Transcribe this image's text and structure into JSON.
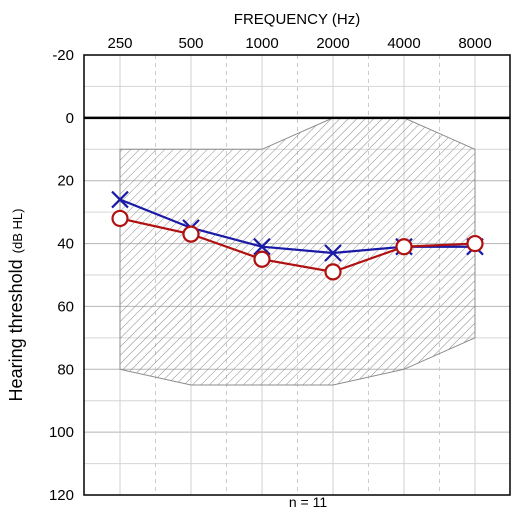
{
  "chart_data": {
    "type": "line",
    "title": "",
    "xlabel": "FREQUENCY (Hz)",
    "ylabel": "Hearing threshold",
    "ylabel_unit": "(dB HL)",
    "x_scale": "log2",
    "categories": [
      "250",
      "500",
      "1000",
      "2000",
      "4000",
      "8000"
    ],
    "x": [
      250,
      500,
      1000,
      2000,
      4000,
      8000
    ],
    "ylim": [
      120,
      -20
    ],
    "y_ticks": [
      -20,
      0,
      20,
      40,
      60,
      80,
      100,
      120
    ],
    "y_inverted": true,
    "grid": true,
    "annotation": "n = 11",
    "normal_range": {
      "label": "",
      "lower": [
        10,
        10,
        10,
        0,
        0,
        10
      ],
      "upper": [
        80,
        85,
        85,
        85,
        80,
        70
      ],
      "color": "#8c8c8c"
    },
    "series": [
      {
        "marker": "x",
        "color": "#1a1aa6",
        "values": [
          26,
          35,
          41,
          43,
          41,
          41
        ]
      },
      {
        "marker": "o",
        "color": "#b01010",
        "values": [
          32,
          37,
          45,
          49,
          41,
          40
        ]
      }
    ]
  }
}
